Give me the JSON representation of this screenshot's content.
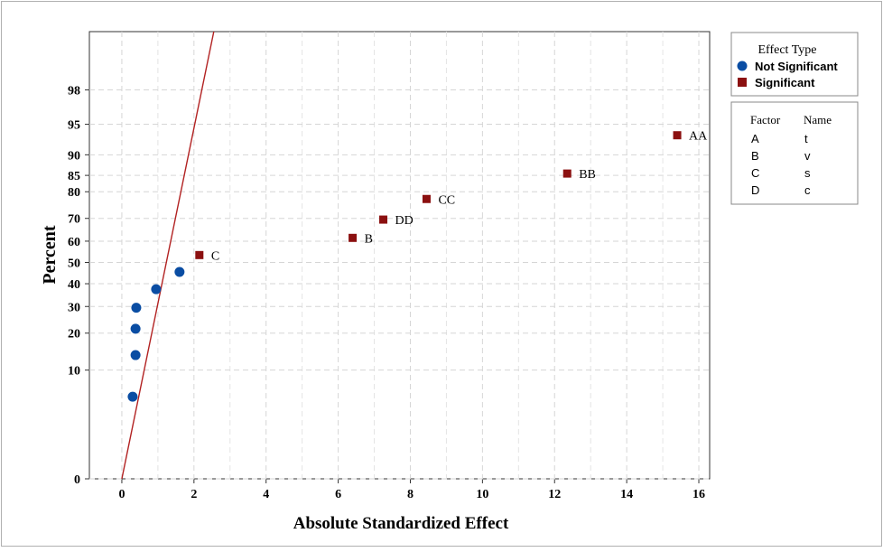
{
  "chart_data": {
    "type": "scatter",
    "xlabel": "Absolute Standardized Effect",
    "ylabel": "Percent",
    "xlim": [
      -0.9,
      16.3
    ],
    "x_ticks": [
      "0",
      "2",
      "4",
      "6",
      "8",
      "10",
      "12",
      "14",
      "16"
    ],
    "x_tick_values": [
      0,
      2,
      4,
      6,
      8,
      10,
      12,
      14,
      16
    ],
    "y_scale": "normal-probability",
    "y_ticks": [
      "0",
      "10",
      "20",
      "30",
      "40",
      "50",
      "60",
      "70",
      "80",
      "85",
      "90",
      "95",
      "98"
    ],
    "y_tick_values": [
      0.5,
      10,
      20,
      30,
      40,
      50,
      60,
      70,
      80,
      85,
      90,
      95,
      98
    ],
    "grid": true,
    "reference_line": {
      "color": "#b22222",
      "points": [
        [
          0,
          0.5
        ],
        [
          2.55,
          99.7
        ]
      ]
    },
    "series": [
      {
        "name": "Not Significant",
        "marker": "circle",
        "color": "#0a4da3",
        "points": [
          {
            "x": 0.3,
            "y": 5.5
          },
          {
            "x": 0.38,
            "y": 13.5
          },
          {
            "x": 0.38,
            "y": 21.5
          },
          {
            "x": 0.4,
            "y": 29.5
          },
          {
            "x": 0.95,
            "y": 37.5
          },
          {
            "x": 1.6,
            "y": 45.5
          }
        ]
      },
      {
        "name": "Significant",
        "marker": "square",
        "color": "#8b1010",
        "points": [
          {
            "x": 2.15,
            "y": 53.5,
            "label": "C"
          },
          {
            "x": 6.4,
            "y": 61.5,
            "label": "B"
          },
          {
            "x": 7.25,
            "y": 69.5,
            "label": "DD"
          },
          {
            "x": 8.45,
            "y": 77.5,
            "label": "CC"
          },
          {
            "x": 12.35,
            "y": 85.5,
            "label": "BB"
          },
          {
            "x": 15.4,
            "y": 93.5,
            "label": "AA"
          }
        ]
      }
    ]
  },
  "legend": {
    "title": "Effect Type",
    "items": [
      {
        "label": "Not Significant",
        "marker": "circle",
        "color": "#0a4da3"
      },
      {
        "label": "Significant",
        "marker": "square",
        "color": "#8b1010"
      }
    ]
  },
  "factor_table": {
    "headers": [
      "Factor",
      "Name"
    ],
    "rows": [
      {
        "factor": "A",
        "name": "t"
      },
      {
        "factor": "B",
        "name": "v"
      },
      {
        "factor": "C",
        "name": "s"
      },
      {
        "factor": "D",
        "name": "c"
      }
    ]
  }
}
